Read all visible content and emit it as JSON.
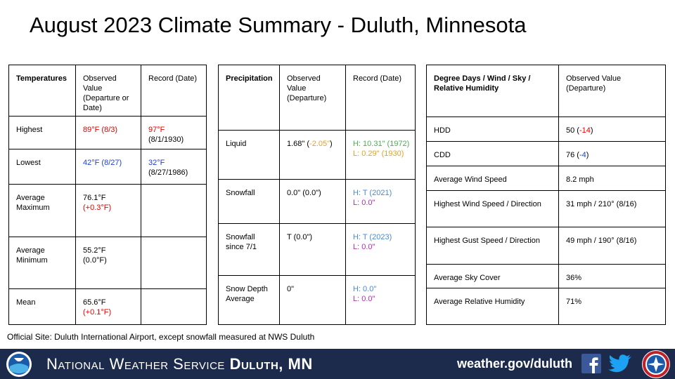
{
  "title": "August 2023 Climate Summary - Duluth, Minnesota",
  "tables": [
    {
      "headers": [
        "Temperatures",
        "Observed Value (Departure or Date)",
        "Record (Date)"
      ],
      "rows": [
        [
          "Highest",
          [
            [
              {
                "text": "89°F (8/3)",
                "color": "#e00000"
              }
            ]
          ],
          [
            [
              {
                "text": "97°F",
                "color": "#e00000"
              }
            ],
            [
              "(8/1/1930)"
            ]
          ]
        ],
        [
          "Lowest",
          [
            [
              {
                "text": "42°F (8/27)",
                "color": "#1f3fd0"
              }
            ]
          ],
          [
            [
              {
                "text": "32°F",
                "color": "#1f3fd0"
              }
            ],
            [
              "(8/27/1986)"
            ]
          ]
        ],
        [
          "Average Maximum",
          [
            [
              "76.1°F"
            ],
            [
              {
                "text": "(+0.3°F)",
                "color": "#e00000"
              }
            ]
          ],
          []
        ],
        [
          "Average Minimum",
          [
            [
              "55.2°F"
            ],
            [
              "(0.0°F)"
            ]
          ],
          []
        ],
        [
          "Mean",
          [
            [
              "65.6°F"
            ],
            [
              {
                "text": "(+0.1°F)",
                "color": "#e00000"
              }
            ]
          ],
          []
        ]
      ]
    },
    {
      "headers": [
        "Precipitation",
        "Observed Value (Departure)",
        "Record (Date)"
      ],
      "rows": [
        [
          "Liquid",
          [
            [
              "1.68\" (",
              {
                "text": "-2.05\"",
                "color": "#e8a020"
              },
              ")"
            ]
          ],
          [
            [
              {
                "text": "H: 10.31\" (1972)",
                "color": "#4caf50"
              }
            ],
            [
              {
                "text": "L: 0.29\" (1930)",
                "color": "#e8a020"
              }
            ]
          ]
        ],
        [
          "Snowfall",
          [
            [
              "0.0\" (0.0\")"
            ]
          ],
          [
            [
              {
                "text": "H: T (2021)",
                "color": "#4a8ad0"
              }
            ],
            [
              {
                "text": "L: 0.0\"",
                "color": "#b030b0"
              }
            ]
          ]
        ],
        [
          "Snowfall since 7/1",
          [
            [
              "T (0.0\")"
            ]
          ],
          [
            [
              {
                "text": "H: T (2023)",
                "color": "#4a8ad0"
              }
            ],
            [
              {
                "text": "L: 0.0\"",
                "color": "#b030b0"
              }
            ]
          ]
        ],
        [
          "Snow Depth Average",
          [
            [
              "0\""
            ]
          ],
          [
            [
              {
                "text": "H: 0.0\"",
                "color": "#4a8ad0"
              }
            ],
            [
              {
                "text": "L: 0.0\"",
                "color": "#b030b0"
              }
            ]
          ]
        ]
      ]
    },
    {
      "headers": [
        "Degree Days / Wind / Sky / Relative Humidity",
        "Observed Value (Departure)"
      ],
      "rows": [
        [
          "HDD",
          [
            [
              "50 (",
              {
                "text": "-14",
                "color": "#e00000"
              },
              ")"
            ]
          ]
        ],
        [
          "CDD",
          [
            [
              "76 (",
              {
                "text": "-4",
                "color": "#1f3fd0"
              },
              ")"
            ]
          ]
        ],
        [
          "Average Wind Speed",
          [
            [
              "8.2 mph"
            ]
          ]
        ],
        [
          "Highest Wind Speed / Direction",
          [
            [
              "31 mph / 210° (8/16)"
            ]
          ]
        ],
        [
          "Highest Gust Speed / Direction",
          [
            [
              "49 mph / 190° (8/16)"
            ]
          ]
        ],
        [
          "Average Sky Cover",
          [
            [
              "36%"
            ]
          ]
        ],
        [
          "Average Relative Humidity",
          [
            [
              "71%"
            ]
          ]
        ]
      ]
    }
  ],
  "note": "Official Site: Duluth International Airport, except snowfall measured at NWS Duluth",
  "footer": {
    "agency": "National Weather Service",
    "office": "Duluth, MN",
    "site": "weather.gov/duluth"
  }
}
